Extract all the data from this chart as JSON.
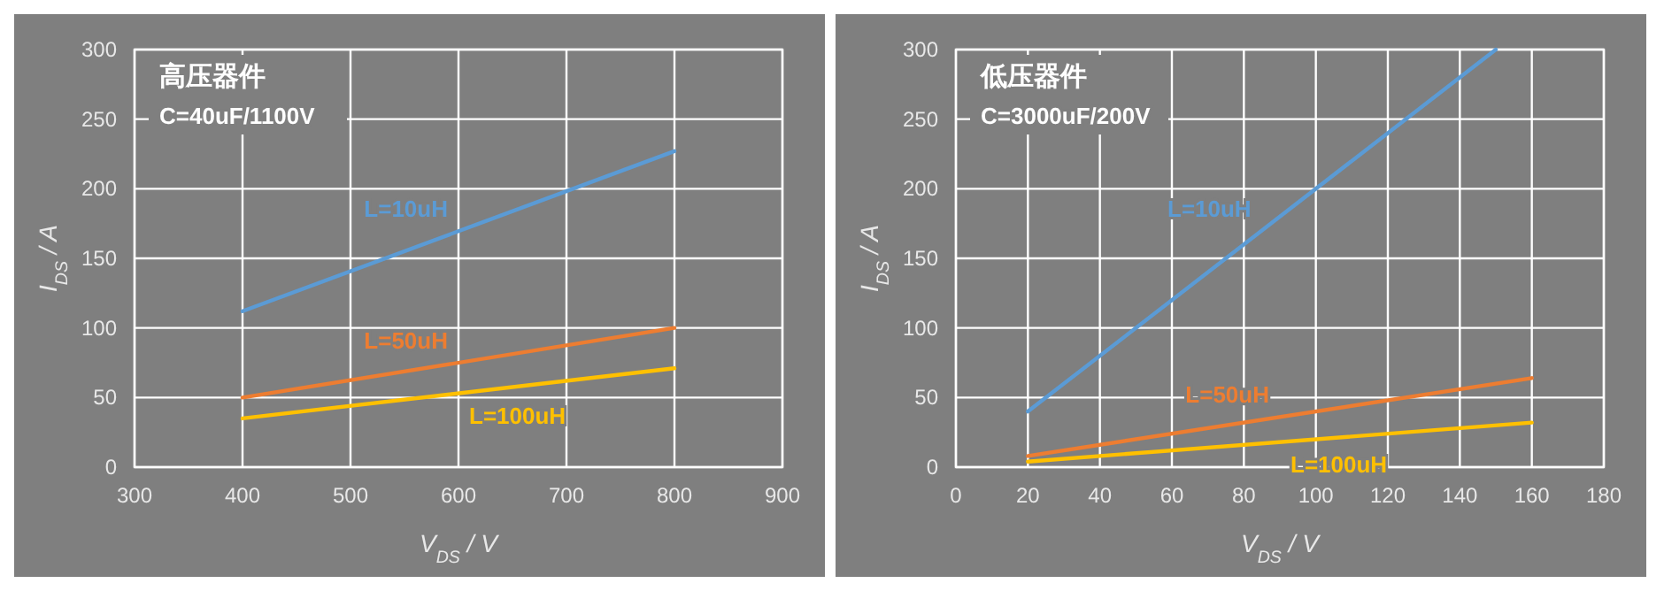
{
  "chart_data": [
    {
      "type": "line",
      "title": "高压器件",
      "subtitle": "C=40uF/1100V",
      "xlabel": "V$_{DS}$ / V",
      "ylabel": "I$_{DS}$ / A",
      "xlim": [
        300,
        900
      ],
      "xticks": [
        300,
        400,
        500,
        600,
        700,
        800,
        900
      ],
      "ylim": [
        0,
        300
      ],
      "yticks": [
        0,
        50,
        100,
        150,
        200,
        250,
        300
      ],
      "grid": true,
      "marker": "none",
      "line_style": "solid",
      "series": [
        {
          "name": "L=10uH",
          "color": "#5b9bd5",
          "x": [
            400,
            800
          ],
          "values": [
            112,
            227
          ]
        },
        {
          "name": "L=50uH",
          "color": "#ed7d31",
          "x": [
            400,
            800
          ],
          "values": [
            50,
            100
          ]
        },
        {
          "name": "L=100uH",
          "color": "#ffc000",
          "x": [
            400,
            800
          ],
          "values": [
            35,
            71
          ]
        }
      ]
    },
    {
      "type": "line",
      "title": "低压器件",
      "subtitle": "C=3000uF/200V",
      "xlabel": "V$_{DS}$ / V",
      "ylabel": "I$_{DS}$ / A",
      "xlim": [
        0,
        180
      ],
      "xticks": [
        0,
        20,
        40,
        60,
        80,
        100,
        120,
        140,
        160,
        180
      ],
      "ylim": [
        0,
        300
      ],
      "yticks": [
        0,
        50,
        100,
        150,
        200,
        250,
        300
      ],
      "grid": true,
      "marker": "none",
      "line_style": "solid",
      "series": [
        {
          "name": "L=10uH",
          "color": "#5b9bd5",
          "x": [
            20,
            150
          ],
          "values": [
            40,
            300
          ]
        },
        {
          "name": "L=50uH",
          "color": "#ed7d31",
          "x": [
            20,
            160
          ],
          "values": [
            8,
            64
          ]
        },
        {
          "name": "L=100uH",
          "color": "#ffc000",
          "x": [
            20,
            160
          ],
          "values": [
            4,
            32
          ]
        }
      ]
    }
  ]
}
